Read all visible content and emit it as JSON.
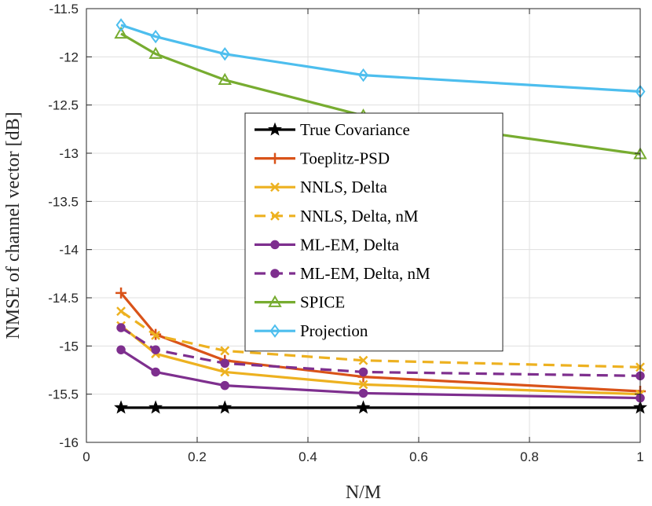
{
  "chart_data": {
    "type": "line",
    "xlabel": "N/M",
    "ylabel": "NMSE of channel vector [dB]",
    "xlim": [
      0,
      1
    ],
    "ylim": [
      -16,
      -11.5
    ],
    "grid": true,
    "legend_position": "center",
    "xticks": [
      0,
      0.2,
      0.4,
      0.6,
      0.8,
      1
    ],
    "xtick_labels": [
      "0",
      "0.2",
      "0.4",
      "0.6",
      "0.8",
      "1"
    ],
    "yticks": [
      -11.5,
      -12,
      -12.5,
      -13,
      -13.5,
      -14,
      -14.5,
      -15,
      -15.5,
      -16
    ],
    "ytick_labels": [
      "-11.5",
      "-12",
      "-12.5",
      "-13",
      "-13.5",
      "-14",
      "-14.5",
      "-15",
      "-15.5",
      "-16"
    ],
    "x": [
      0.0625,
      0.125,
      0.25,
      0.5,
      1
    ],
    "series": [
      {
        "name": "True Covariance",
        "color": "#000000",
        "dash": "solid",
        "marker": "star",
        "values": [
          -15.64,
          -15.64,
          -15.64,
          -15.64,
          -15.64
        ]
      },
      {
        "name": "Toeplitz-PSD",
        "color": "#D95319",
        "dash": "solid",
        "marker": "plus",
        "values": [
          -14.45,
          -14.88,
          -15.15,
          -15.32,
          -15.47
        ]
      },
      {
        "name": "NNLS, Delta",
        "color": "#EDB120",
        "dash": "solid",
        "marker": "x",
        "values": [
          -14.79,
          -15.08,
          -15.27,
          -15.4,
          -15.5
        ]
      },
      {
        "name": "NNLS, Delta, nM",
        "color": "#EDB120",
        "dash": "dashed",
        "marker": "x",
        "values": [
          -14.64,
          -14.89,
          -15.05,
          -15.15,
          -15.22
        ]
      },
      {
        "name": "ML-EM, Delta",
        "color": "#7E2F8E",
        "dash": "solid",
        "marker": "circle",
        "values": [
          -15.04,
          -15.27,
          -15.41,
          -15.49,
          -15.54
        ]
      },
      {
        "name": "ML-EM, Delta, nM",
        "color": "#7E2F8E",
        "dash": "dashed",
        "marker": "circle",
        "values": [
          -14.81,
          -15.04,
          -15.18,
          -15.27,
          -15.31
        ]
      },
      {
        "name": "SPICE",
        "color": "#77AC30",
        "dash": "solid",
        "marker": "triangle",
        "values": [
          -11.76,
          -11.97,
          -12.24,
          -12.61,
          -13.01
        ]
      },
      {
        "name": "Projection",
        "color": "#4DBEEE",
        "dash": "solid",
        "marker": "diamond",
        "values": [
          -11.67,
          -11.79,
          -11.97,
          -12.19,
          -12.36
        ]
      }
    ]
  }
}
